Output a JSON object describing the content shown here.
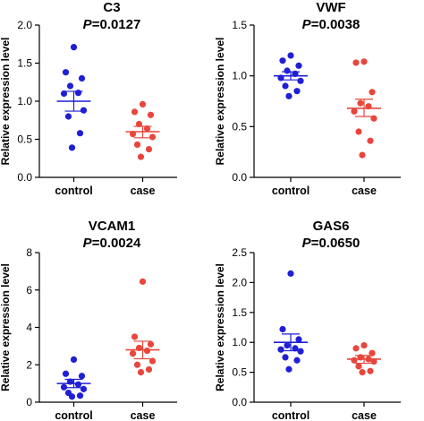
{
  "chart_data": [
    {
      "type": "scatter",
      "title": "C3",
      "p_label": "P",
      "p_value": "=0.0127",
      "ylabel": "Relative expression level",
      "ylim": [
        0,
        2.0
      ],
      "yticks": [
        0,
        0.5,
        1.0,
        1.5,
        2.0
      ],
      "ytick_labels": [
        "0.0",
        "0.5",
        "1.0",
        "1.5",
        "2.0"
      ],
      "categories": [
        "control",
        "case"
      ],
      "series": [
        {
          "category": "control",
          "color": "#1f1fd6",
          "values": [
            1.71,
            1.38,
            1.3,
            1.2,
            1.11,
            1.1,
            0.88,
            0.8,
            0.58,
            0.39
          ],
          "mean": 1.0,
          "sem": [
            0.87,
            1.13
          ]
        },
        {
          "category": "case",
          "color": "#e8463c",
          "values": [
            0.96,
            0.86,
            0.82,
            0.7,
            0.64,
            0.57,
            0.53,
            0.43,
            0.37,
            0.27
          ],
          "mean": 0.6,
          "sem": [
            0.52,
            0.67
          ]
        }
      ]
    },
    {
      "type": "scatter",
      "title": "VWF",
      "p_label": "P",
      "p_value": "=0.0038",
      "ylabel": "Relative expression level",
      "ylim": [
        0,
        1.5
      ],
      "yticks": [
        0,
        0.5,
        1.0,
        1.5
      ],
      "ytick_labels": [
        "0.0",
        "0.5",
        "1.0",
        "1.5"
      ],
      "categories": [
        "control",
        "case"
      ],
      "series": [
        {
          "category": "control",
          "color": "#1f1fd6",
          "values": [
            1.2,
            1.15,
            1.1,
            1.05,
            1.02,
            0.98,
            0.95,
            0.9,
            0.85,
            0.8
          ],
          "mean": 1.0,
          "sem": [
            0.96,
            1.04
          ]
        },
        {
          "category": "case",
          "color": "#e8463c",
          "values": [
            1.14,
            1.13,
            0.84,
            0.73,
            0.7,
            0.65,
            0.58,
            0.45,
            0.36,
            0.22
          ],
          "mean": 0.68,
          "sem": [
            0.6,
            0.77
          ]
        }
      ]
    },
    {
      "type": "scatter",
      "title": "VCAM1",
      "p_label": "P",
      "p_value": "=0.0024",
      "ylabel": "Relative expression level",
      "ylim": [
        0,
        8
      ],
      "yticks": [
        0,
        2,
        4,
        6,
        8
      ],
      "ytick_labels": [
        "0",
        "2",
        "4",
        "6",
        "8"
      ],
      "categories": [
        "control",
        "case"
      ],
      "series": [
        {
          "category": "control",
          "color": "#1f1fd6",
          "values": [
            2.28,
            1.52,
            1.4,
            1.1,
            0.95,
            0.8,
            0.7,
            0.5,
            0.35,
            0.3
          ],
          "mean": 1.0,
          "sem": [
            0.78,
            1.22
          ]
        },
        {
          "category": "case",
          "color": "#e8463c",
          "values": [
            6.45,
            3.5,
            3.1,
            2.9,
            2.75,
            2.6,
            2.2,
            2.0,
            1.75,
            1.6
          ],
          "mean": 2.8,
          "sem": [
            2.32,
            3.26
          ]
        }
      ]
    },
    {
      "type": "scatter",
      "title": "GAS6",
      "p_label": "P",
      "p_value": "=0.0650",
      "ylabel": "Relative expression level",
      "ylim": [
        0,
        2.5
      ],
      "yticks": [
        0,
        0.5,
        1.0,
        1.5,
        2.0,
        2.5
      ],
      "ytick_labels": [
        "0.0",
        "0.5",
        "1.0",
        "1.5",
        "2.0",
        "2.5"
      ],
      "categories": [
        "control",
        "case"
      ],
      "series": [
        {
          "category": "control",
          "color": "#1f1fd6",
          "values": [
            2.15,
            1.22,
            1.05,
            0.95,
            0.9,
            0.88,
            0.85,
            0.75,
            0.7,
            0.55
          ],
          "mean": 1.0,
          "sem": [
            0.86,
            1.14
          ]
        },
        {
          "category": "case",
          "color": "#e8463c",
          "values": [
            0.95,
            0.9,
            0.82,
            0.75,
            0.72,
            0.7,
            0.68,
            0.6,
            0.52,
            0.5
          ],
          "mean": 0.72,
          "sem": [
            0.65,
            0.78
          ]
        }
      ]
    }
  ]
}
